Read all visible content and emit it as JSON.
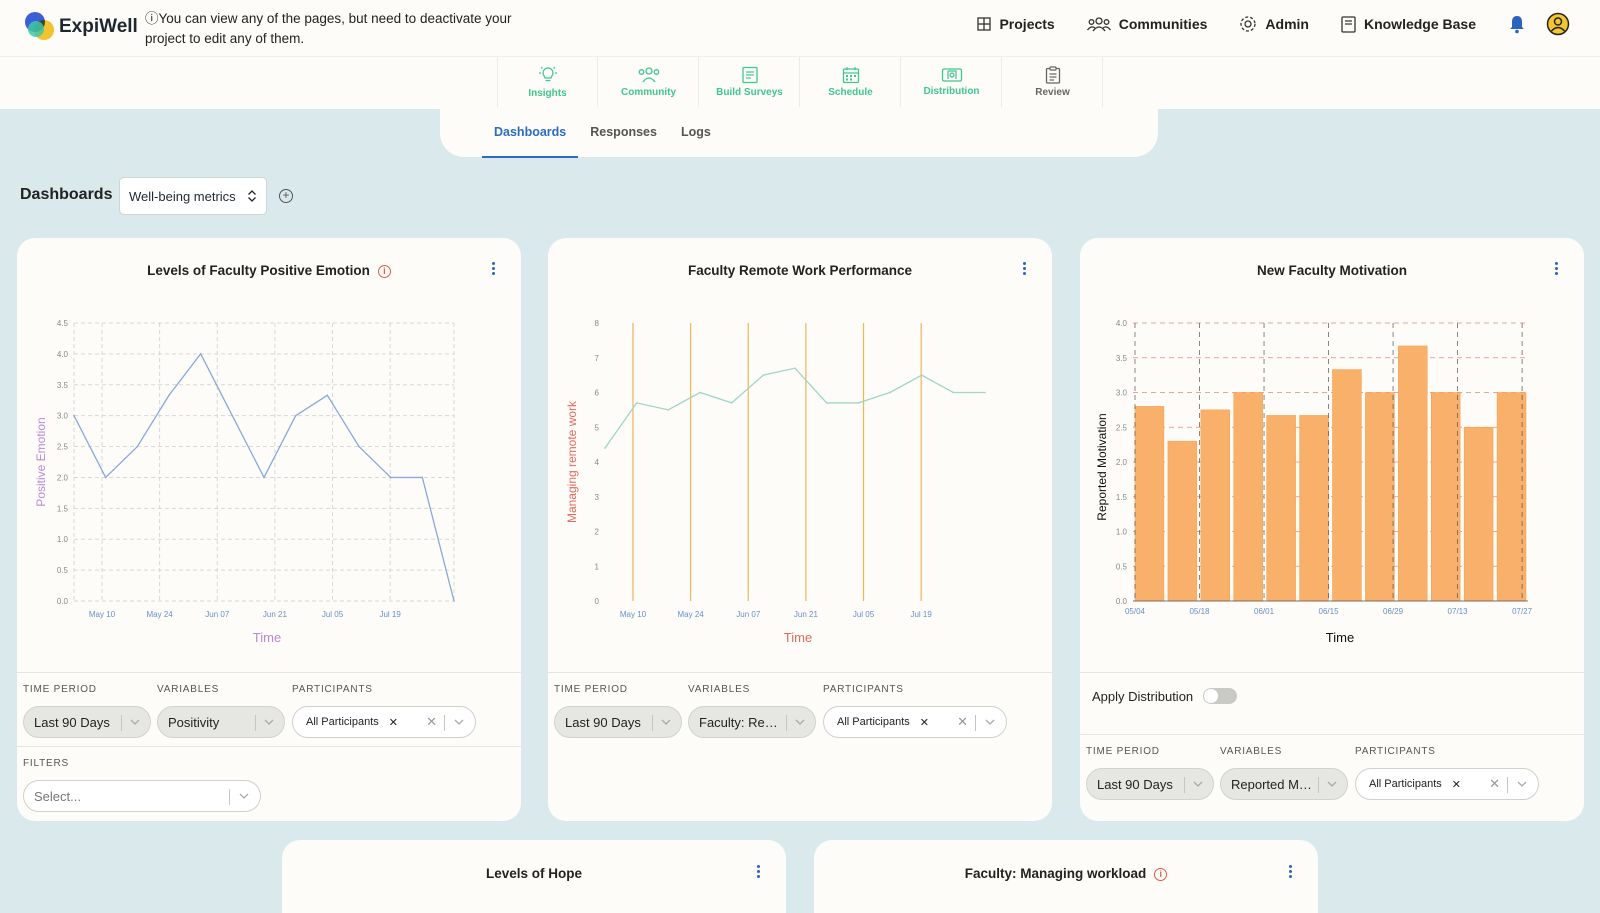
{
  "app": {
    "name": "ExpiWell",
    "notice": "You can view any of the pages, but need to deactivate your project to edit any of them.",
    "notice_icon": "info-icon"
  },
  "nav": {
    "projects": "Projects",
    "communities": "Communities",
    "admin": "Admin",
    "knowledge_base": "Knowledge Base",
    "accent": "#2d63c0"
  },
  "stepper": [
    {
      "label": "Insights",
      "icon": "lightbulb-icon"
    },
    {
      "label": "Community",
      "icon": "users-icon"
    },
    {
      "label": "Build Surveys",
      "icon": "form-icon"
    },
    {
      "label": "Schedule",
      "icon": "calendar-icon"
    },
    {
      "label": "Distribution",
      "icon": "distribution-icon"
    },
    {
      "label": "Review",
      "icon": "clipboard-icon"
    }
  ],
  "subtabs": [
    "Dashboards",
    "Responses",
    "Logs"
  ],
  "dashboard": {
    "label": "Dashboards",
    "selected": "Well-being metrics"
  },
  "filters": {
    "time_period": "TIME PERIOD",
    "variables": "VARIABLES",
    "participants": "PARTICIPANTS",
    "filters": "FILTERS",
    "apply_distribution": "Apply Distribution"
  },
  "cards": [
    {
      "title": "Levels of Faculty Positive Emotion",
      "time_period": "Last 90 Days",
      "variable": "Positivity",
      "participants": "All Participants",
      "filter_placeholder": "Select..."
    },
    {
      "title": "Faculty Remote Work Performance",
      "time_period": "Last 90 Days",
      "variable": "Faculty: Re…",
      "participants": "All Participants"
    },
    {
      "title": "New Faculty Motivation",
      "time_period": "Last 90 Days",
      "variable": "Reported M…",
      "participants": "All Participants"
    },
    {
      "title": "Levels of Hope"
    },
    {
      "title": "Faculty: Managing workload"
    }
  ],
  "chart_data": [
    {
      "type": "line",
      "title": "Levels of Faculty Positive Emotion",
      "xlabel": "Time",
      "ylabel": "Positive Emotion",
      "ylim": [
        0,
        4.5
      ],
      "yticks": [
        "0.0",
        "0.5",
        "1.0",
        "1.5",
        "2.0",
        "2.5",
        "3.0",
        "3.5",
        "4.0",
        "4.5"
      ],
      "xticks": [
        "May 10",
        "May 24",
        "Jun 07",
        "Jun 21",
        "Jul 05",
        "Jul 19"
      ],
      "x": [
        0,
        1,
        2,
        3,
        4,
        5,
        6,
        7,
        8,
        9,
        10,
        11,
        12
      ],
      "values": [
        3.0,
        2.0,
        2.5,
        3.33,
        4.0,
        3.0,
        2.0,
        3.0,
        3.33,
        2.5,
        2.0,
        2.0,
        0.0
      ],
      "line_color": "#8aa9d6",
      "ylabel_color": "#b98bd6",
      "xlabel_color": "#b98bd6",
      "grid": true
    },
    {
      "type": "line",
      "title": "Faculty Remote Work Performance",
      "xlabel": "Time",
      "ylabel": "Managing remote work",
      "ylim": [
        0,
        8
      ],
      "yticks": [
        "0",
        "1",
        "2",
        "3",
        "4",
        "5",
        "6",
        "7",
        "8"
      ],
      "xticks": [
        "May 10",
        "May 24",
        "Jun 07",
        "Jun 21",
        "Jul 05",
        "Jul 19"
      ],
      "values": [
        4.4,
        5.7,
        5.5,
        6.0,
        5.7,
        6.5,
        6.7,
        5.7,
        5.7,
        6.0,
        6.5,
        6.0,
        6.0
      ],
      "line_color": "#9fd6c6",
      "vline_color": "#f0b45a",
      "ylabel_color": "#e46a5a",
      "xlabel_color": "#e46a5a",
      "grid": false
    },
    {
      "type": "bar",
      "title": "New Faculty Motivation",
      "xlabel": "Time",
      "ylabel": "Reported Motivation",
      "ylim": [
        0,
        4.0
      ],
      "yticks": [
        "0.0",
        "0.5",
        "1.0",
        "1.5",
        "2.0",
        "2.5",
        "3.0",
        "3.5",
        "4.0"
      ],
      "xticks": [
        "05/04",
        "05/18",
        "06/01",
        "06/15",
        "06/29",
        "07/13",
        "07/27"
      ],
      "values": [
        2.8,
        2.3,
        2.75,
        3.0,
        2.67,
        2.67,
        3.33,
        3.0,
        3.67,
        3.0,
        2.5,
        3.0
      ],
      "bar_color": "#f9b06a",
      "grid_color": "#e8857a",
      "grid": true
    }
  ]
}
